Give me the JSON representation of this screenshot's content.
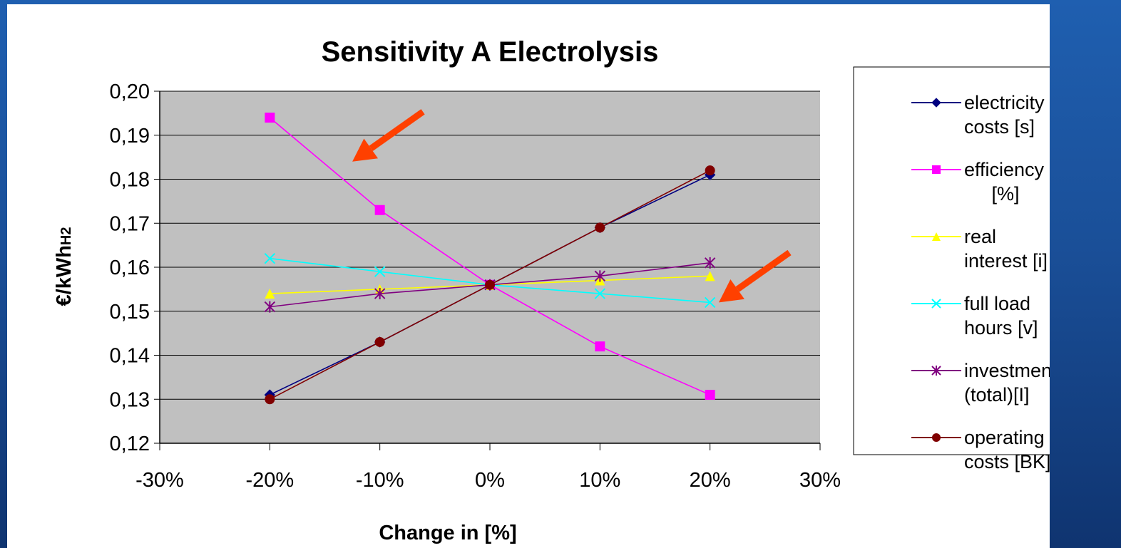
{
  "chart_data": {
    "type": "line",
    "title": "Sensitivity A Electrolysis",
    "xlabel": "Change in [%]",
    "ylabel": "€/kWh",
    "ylabel_sub": "H2",
    "x": [
      -20,
      -10,
      0,
      10,
      20
    ],
    "xlim": [
      -30,
      30
    ],
    "xticks": [
      -30,
      -20,
      -10,
      0,
      10,
      20,
      30
    ],
    "xtick_labels": [
      "-30%",
      "-20%",
      "-10%",
      "0%",
      "10%",
      "20%",
      "30%"
    ],
    "ylim": [
      0.12,
      0.2
    ],
    "yticks": [
      0.12,
      0.13,
      0.14,
      0.15,
      0.16,
      0.17,
      0.18,
      0.19,
      0.2
    ],
    "ytick_labels": [
      "0,12",
      "0,13",
      "0,14",
      "0,15",
      "0,16",
      "0,17",
      "0,18",
      "0,19",
      "0,20"
    ],
    "grid": true,
    "plot_background": "#c0c0c0",
    "legend_position": "right",
    "series": [
      {
        "name": "electricity costs [s]",
        "legend_lines": [
          "electricity",
          "costs [s]"
        ],
        "color": "#000080",
        "marker": "diamond",
        "values": [
          0.131,
          0.143,
          0.156,
          0.169,
          0.181
        ]
      },
      {
        "name": "efficiency [%]",
        "legend_lines": [
          "efficiency",
          "[%]"
        ],
        "color": "#ff00ff",
        "marker": "square",
        "values": [
          0.194,
          0.173,
          0.156,
          0.142,
          0.131
        ]
      },
      {
        "name": "real interest [i]",
        "legend_lines": [
          "real",
          "interest [i]"
        ],
        "color": "#ffff00",
        "marker": "triangle",
        "values": [
          0.154,
          0.155,
          0.156,
          0.157,
          0.158
        ]
      },
      {
        "name": "full load hours [v]",
        "legend_lines": [
          "full load",
          "hours [v]"
        ],
        "color": "#00ffff",
        "marker": "x",
        "values": [
          0.162,
          0.159,
          0.156,
          0.154,
          0.152
        ]
      },
      {
        "name": "investment (total)[I]",
        "legend_lines": [
          "investment",
          "(total)[I]"
        ],
        "color": "#800080",
        "marker": "star",
        "values": [
          0.151,
          0.154,
          0.156,
          0.158,
          0.161
        ]
      },
      {
        "name": "operating costs [BK]",
        "legend_lines": [
          "operating",
          "costs [BK]"
        ],
        "color": "#800000",
        "marker": "circle",
        "values": [
          0.13,
          0.143,
          0.156,
          0.169,
          0.182
        ]
      }
    ],
    "annotations": [
      {
        "type": "arrow",
        "color": "#ff4000",
        "points_at": {
          "x": -12.5,
          "y": 0.184
        }
      },
      {
        "type": "arrow",
        "color": "#ff4000",
        "points_at": {
          "x": 20.8,
          "y": 0.152
        }
      }
    ]
  }
}
